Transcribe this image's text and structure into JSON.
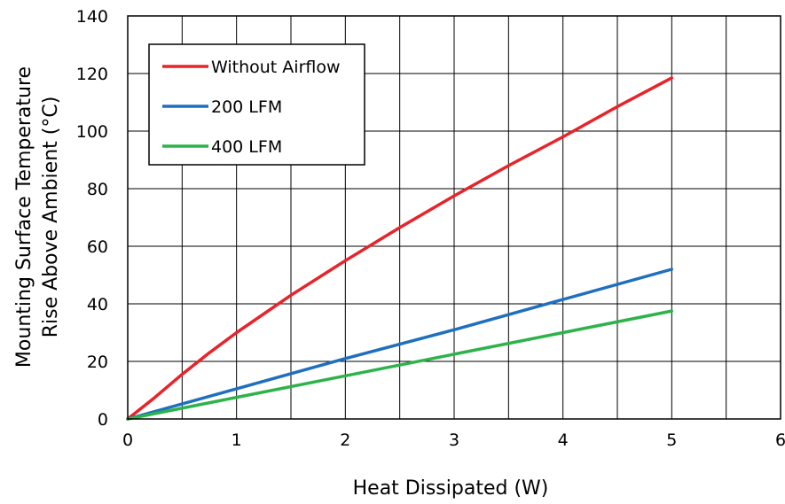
{
  "chart_data": {
    "type": "line",
    "title": "",
    "xlabel": "Heat Dissipated (W)",
    "ylabel_lines": [
      "Mounting Surface Temperature",
      "Rise Above  Ambient (°C)"
    ],
    "xlim": [
      0,
      6
    ],
    "ylim": [
      0,
      140
    ],
    "xticks": [
      0,
      0.5,
      1,
      1.5,
      2,
      2.5,
      3,
      3.5,
      4,
      4.5,
      5,
      5.5,
      6
    ],
    "xtick_labels": [
      "0",
      "",
      "1",
      "",
      "2",
      "",
      "3",
      "",
      "4",
      "",
      "5",
      "",
      "6"
    ],
    "yticks": [
      0,
      20,
      40,
      60,
      80,
      100,
      120,
      140
    ],
    "ytick_labels": [
      "0",
      "20",
      "40",
      "60",
      "80",
      "100",
      "120",
      "140"
    ],
    "grid": true,
    "legend_position": "top-left",
    "series": [
      {
        "name": "Without Airflow",
        "color": "#e8232a",
        "x": [
          0,
          0.25,
          0.5,
          0.75,
          1,
          1.5,
          2,
          2.5,
          3,
          3.5,
          4,
          4.5,
          5
        ],
        "y": [
          0,
          7.5,
          15.5,
          23,
          30,
          43,
          55,
          66.5,
          77.5,
          88,
          98,
          108.5,
          118.5
        ]
      },
      {
        "name": "200 LFM",
        "color": "#1f6fbf",
        "x": [
          0,
          1,
          2,
          3,
          4,
          5
        ],
        "y": [
          0,
          10.5,
          21,
          31,
          41.5,
          52
        ]
      },
      {
        "name": "400 LFM",
        "color": "#2db34a",
        "x": [
          0,
          1,
          2,
          3,
          4,
          5
        ],
        "y": [
          0,
          7.5,
          15,
          22.5,
          30,
          37.5
        ]
      }
    ]
  }
}
